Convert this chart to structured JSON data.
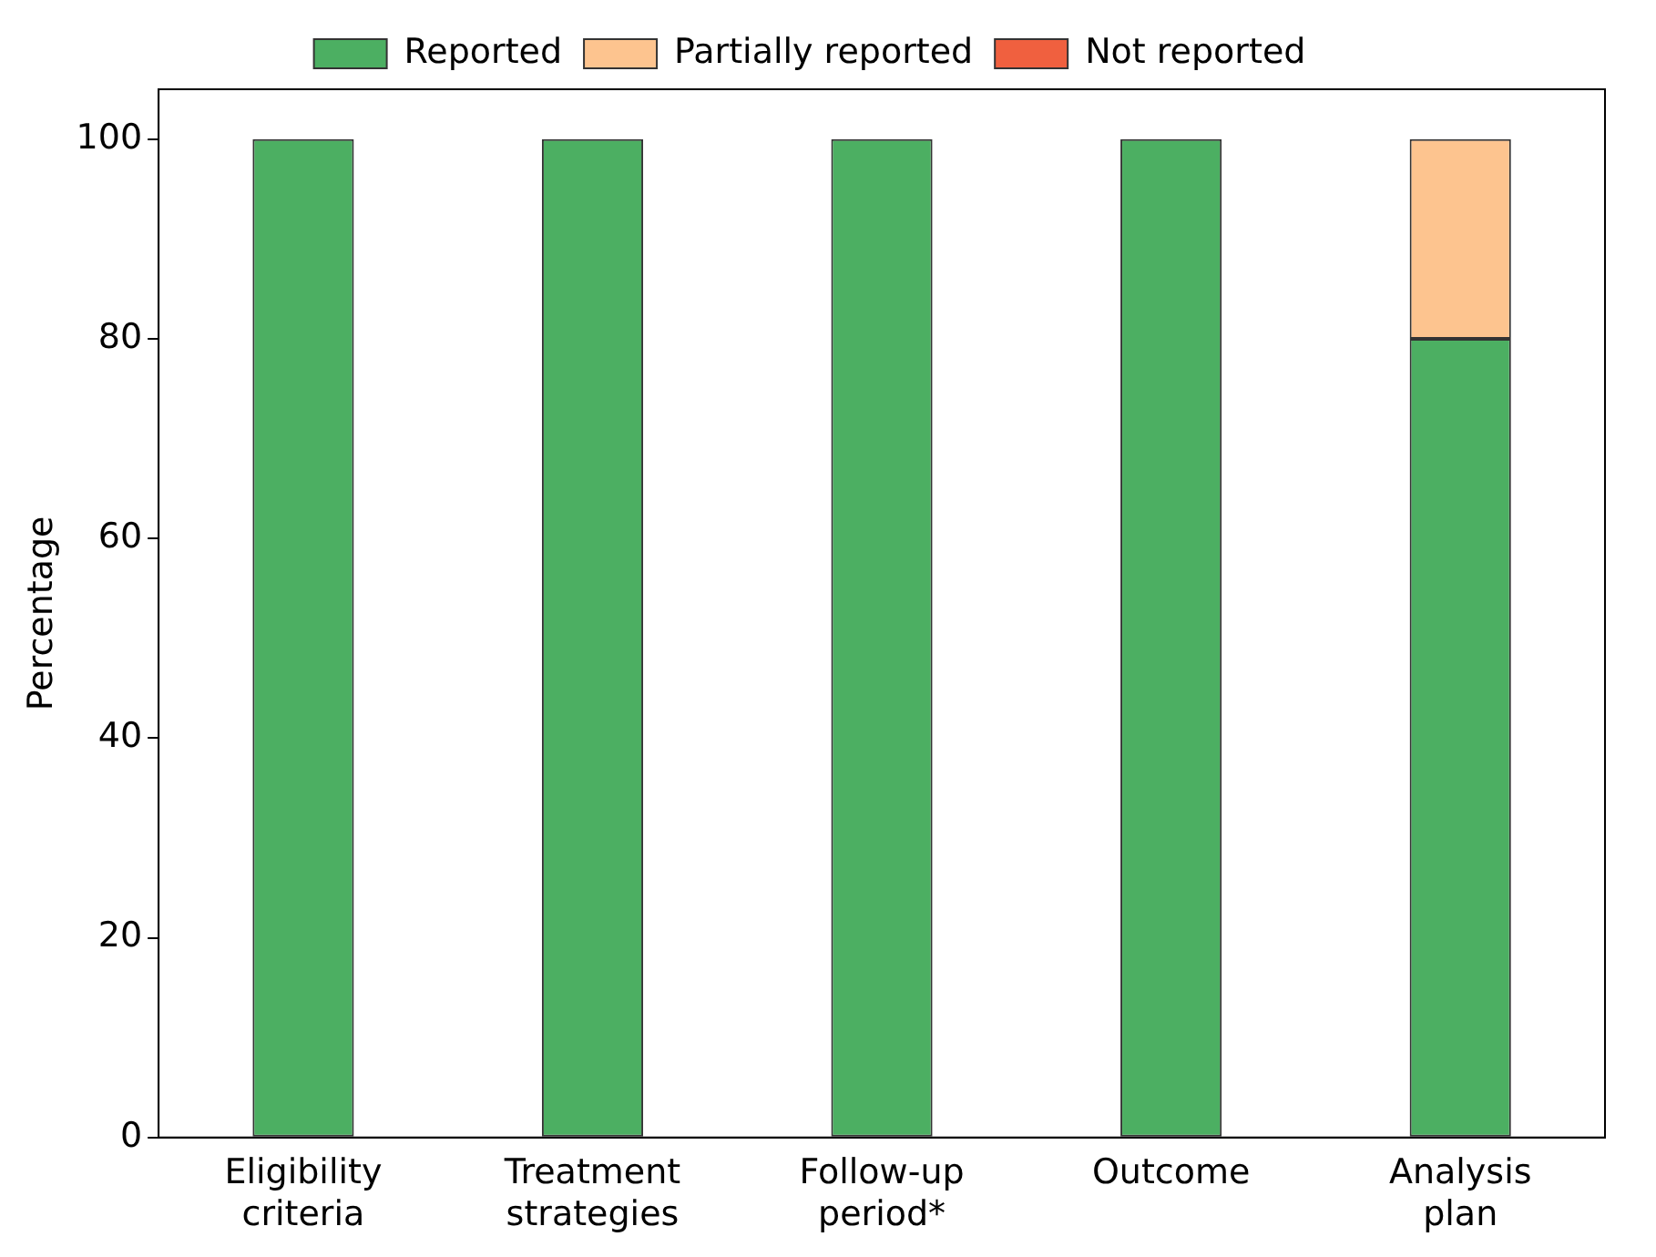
{
  "chart_data": {
    "type": "bar",
    "ylabel": "Percentage",
    "categories": [
      "Eligibility criteria",
      "Treatment strategies",
      "Follow-up period*",
      "Outcome",
      "Analysis plan"
    ],
    "stacked": true,
    "series": [
      {
        "name": "Reported",
        "color": "#4caf62",
        "values": [
          100,
          100,
          100,
          100,
          80
        ]
      },
      {
        "name": "Partially reported",
        "color": "#fdc48f",
        "values": [
          0,
          0,
          0,
          0,
          20
        ]
      },
      {
        "name": "Not reported",
        "color": "#f0603f",
        "values": [
          0,
          0,
          0,
          0,
          0
        ]
      }
    ],
    "ylim": [
      0,
      105
    ],
    "yticks": [
      0,
      20,
      40,
      60,
      80,
      100
    ],
    "grid": false,
    "legend": "top"
  }
}
